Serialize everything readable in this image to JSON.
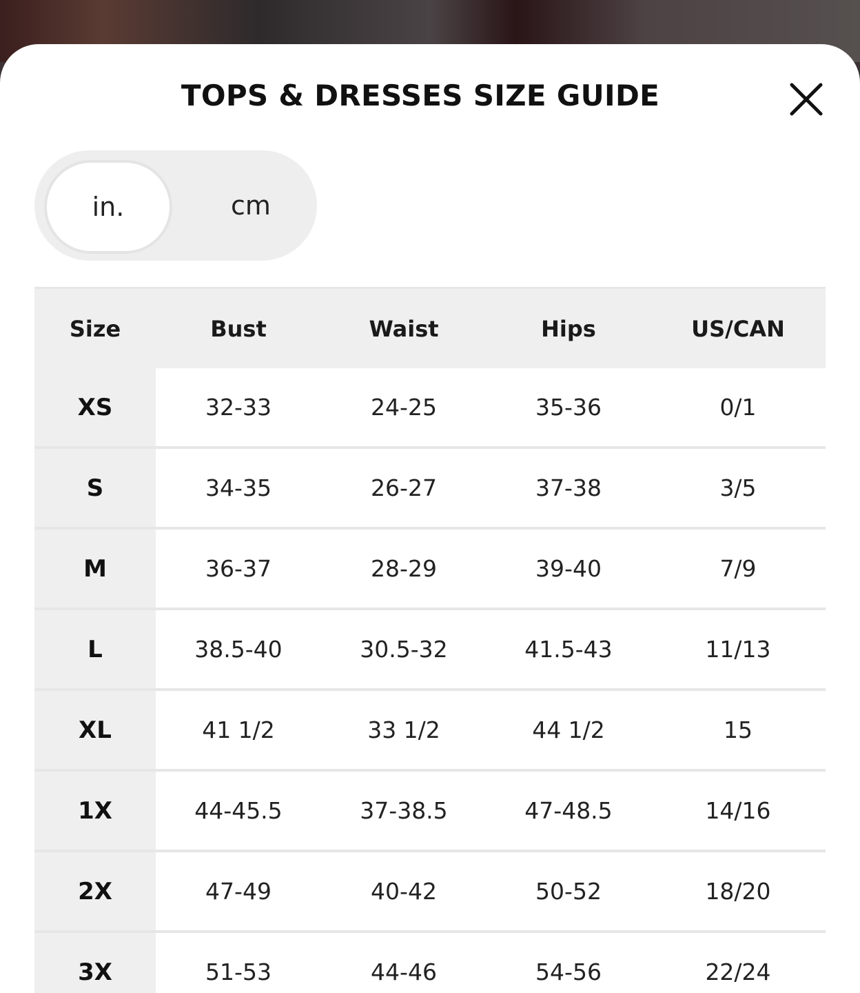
{
  "title": "TOPS & DRESSES SIZE GUIDE",
  "unit_toggle": {
    "options": [
      "in.",
      "cm"
    ],
    "selected": "in."
  },
  "table": {
    "headers": [
      "Size",
      "Bust",
      "Waist",
      "Hips",
      "US/CAN"
    ],
    "rows": [
      [
        "XS",
        "32-33",
        "24-25",
        "35-36",
        "0/1"
      ],
      [
        "S",
        "34-35",
        "26-27",
        "37-38",
        "3/5"
      ],
      [
        "M",
        "36-37",
        "28-29",
        "39-40",
        "7/9"
      ],
      [
        "L",
        "38.5-40",
        "30.5-32",
        "41.5-43",
        "11/13"
      ],
      [
        "XL",
        "41 1/2",
        "33 1/2",
        "44 1/2",
        "15"
      ],
      [
        "1X",
        "44-45.5",
        "37-38.5",
        "47-48.5",
        "14/16"
      ],
      [
        "2X",
        "47-49",
        "40-42",
        "50-52",
        "18/20"
      ],
      [
        "3X",
        "51-53",
        "44-46",
        "54-56",
        "22/24"
      ]
    ]
  },
  "icons": {
    "close": "close-icon"
  },
  "colors": {
    "header_bg": "#efefef",
    "text": "#222222",
    "sheet_bg": "#ffffff"
  }
}
